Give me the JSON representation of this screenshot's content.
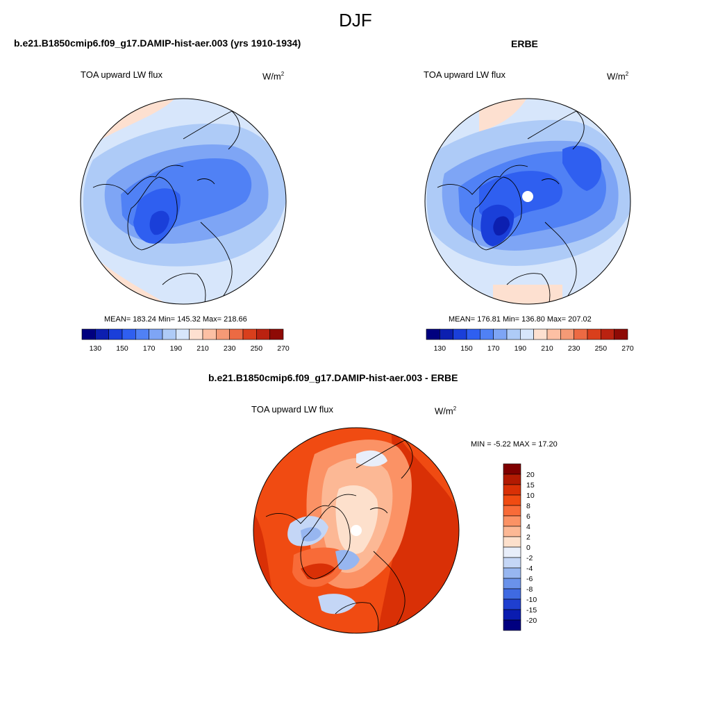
{
  "figure": {
    "title": "DJF"
  },
  "chart_data": [
    {
      "type": "heatmap",
      "projection": "polar stereographic (north pole)",
      "panel_title": "b.e21.B1850cmip6.f09_g17.DAMIP-hist-aer.003 (yrs 1910-1934)",
      "field_label": "TOA upward LW flux",
      "units": "W/m",
      "units_exp": "2",
      "stats": {
        "mean": 183.24,
        "min": 145.32,
        "max": 218.66
      },
      "stats_text": "MEAN= 183.24  Min= 145.32  Max= 218.66",
      "colorbar_ticks": [
        "130",
        "150",
        "170",
        "190",
        "210",
        "230",
        "250",
        "270"
      ],
      "colorbar_colors": [
        "#00007f",
        "#0c1fb0",
        "#1a3fd9",
        "#2f5ff0",
        "#5081f5",
        "#7ea5f5",
        "#aecbf7",
        "#d7e6fb",
        "#fde0d0",
        "#fcc0a4",
        "#f59a76",
        "#ec6a43",
        "#d93f1c",
        "#ba2210",
        "#8e0a05"
      ],
      "grid": false
    },
    {
      "type": "heatmap",
      "projection": "polar stereographic (north pole)",
      "panel_title": "ERBE",
      "field_label": "TOA upward LW flux",
      "units": "W/m",
      "units_exp": "2",
      "stats": {
        "mean": 176.81,
        "min": 136.8,
        "max": 207.02
      },
      "stats_text": "MEAN= 176.81  Min= 136.80  Max= 207.02",
      "colorbar_ticks": [
        "130",
        "150",
        "170",
        "190",
        "210",
        "230",
        "250",
        "270"
      ],
      "colorbar_colors": [
        "#00007f",
        "#0c1fb0",
        "#1a3fd9",
        "#2f5ff0",
        "#5081f5",
        "#7ea5f5",
        "#aecbf7",
        "#d7e6fb",
        "#fde0d0",
        "#fcc0a4",
        "#f59a76",
        "#ec6a43",
        "#d93f1c",
        "#ba2210",
        "#8e0a05"
      ],
      "grid": false
    },
    {
      "type": "heatmap",
      "projection": "polar stereographic (north pole)",
      "panel_title": "b.e21.B1850cmip6.f09_g17.DAMIP-hist-aer.003 - ERBE",
      "field_label": "TOA upward LW flux",
      "units": "W/m",
      "units_exp": "2",
      "stats": {
        "min": -5.22,
        "max": 17.2
      },
      "stats_text": "MIN =  -5.22 MAX =  17.20",
      "colorbar_ticks": [
        "20",
        "15",
        "10",
        "8",
        "6",
        "4",
        "2",
        "0",
        "-2",
        "-4",
        "-6",
        "-8",
        "-10",
        "-15",
        "-20"
      ],
      "colorbar_colors": [
        "#7f0000",
        "#b21a02",
        "#d93006",
        "#f04b12",
        "#f86b38",
        "#fb9265",
        "#fcb895",
        "#fde0cc",
        "#e8eefa",
        "#c4d6f6",
        "#97b6f0",
        "#6a92ea",
        "#3f6ae2",
        "#1f3fcf",
        "#0a1cb0",
        "#000080"
      ],
      "grid": false
    }
  ]
}
